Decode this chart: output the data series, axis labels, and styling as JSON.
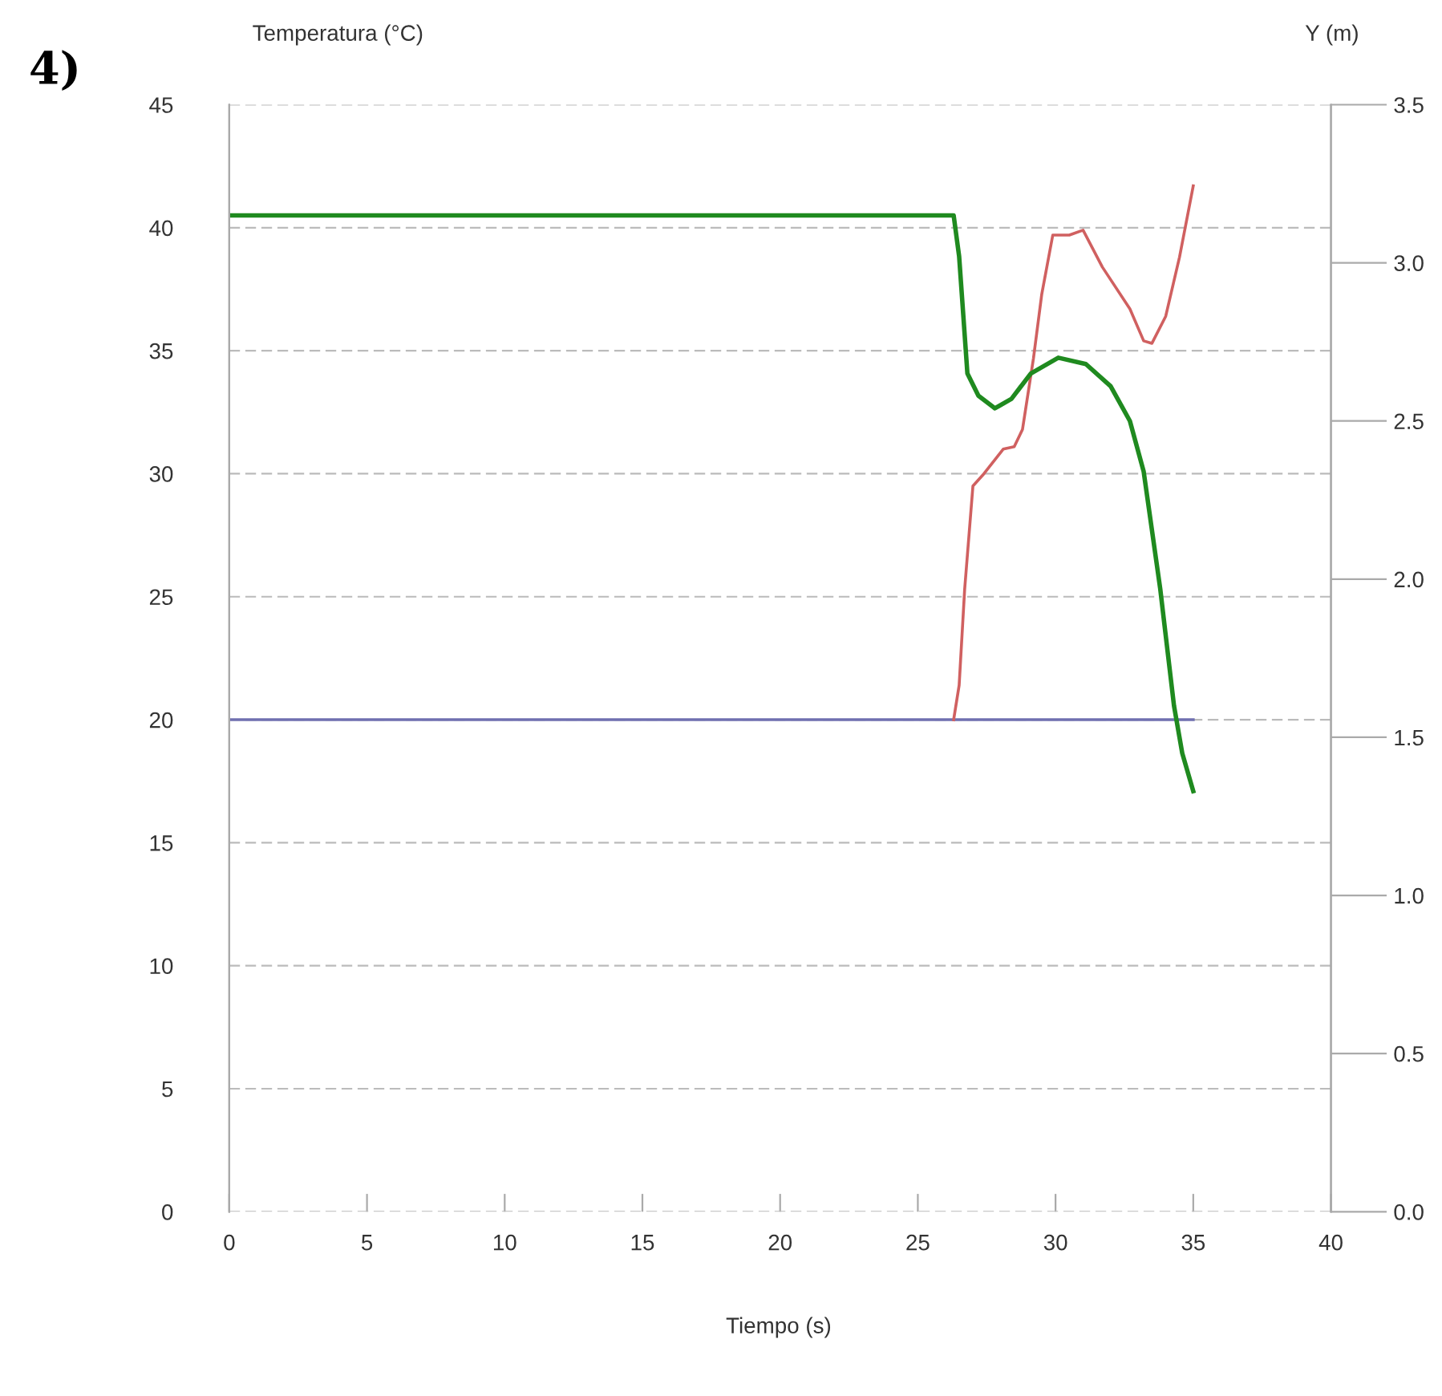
{
  "chart_data": {
    "type": "line",
    "title": "4)",
    "xlabel": "Tiempo (s)",
    "ylabel": "Temperatura (°C)",
    "y2label": "Y (m)",
    "xlim": [
      0,
      40
    ],
    "xticks": [
      0,
      5,
      10,
      15,
      20,
      25,
      30,
      35,
      40
    ],
    "ylim": [
      0,
      45
    ],
    "yticks": [
      0,
      5,
      10,
      15,
      20,
      25,
      30,
      35,
      40,
      45
    ],
    "y2lim": [
      0,
      3.5
    ],
    "y2ticks": [
      {
        "value": 0,
        "label": "0.0"
      },
      {
        "value": 0.5,
        "label": "0.5"
      },
      {
        "value": 1,
        "label": "1.0"
      },
      {
        "value": 1.5,
        "label": "1.5"
      },
      {
        "value": 2,
        "label": "2.0"
      },
      {
        "value": 2.5,
        "label": "2.5"
      },
      {
        "value": 3,
        "label": "3.0"
      },
      {
        "value": 3.5,
        "label": "3.5"
      }
    ],
    "grid": "y",
    "series": [
      {
        "color": "#7070b0",
        "x": [
          0,
          35
        ],
        "values": [
          20,
          20
        ]
      },
      {
        "color": "#d06060",
        "x": [
          26.3,
          26.5,
          26.7,
          27.0,
          27.4,
          28.1,
          28.5,
          28.8,
          29.2,
          29.5,
          29.9,
          30.5,
          31.0,
          31.7,
          32.7,
          33.2,
          33.5,
          34.0,
          34.5,
          35.0
        ],
        "values": [
          20.0,
          21.4,
          25.3,
          29.5,
          30.0,
          31.0,
          31.1,
          31.8,
          34.7,
          37.3,
          39.7,
          39.7,
          39.9,
          38.4,
          36.7,
          35.4,
          35.3,
          36.4,
          38.8,
          41.7
        ]
      },
      {
        "color": "#1f8a1f",
        "axis": "y2",
        "x": [
          0,
          26.3,
          26.5,
          26.8,
          27.2,
          27.8,
          28.4,
          29.1,
          30.1,
          31.1,
          32.0,
          32.7,
          33.2,
          33.8,
          34.3,
          34.6,
          35.0
        ],
        "values": [
          3.15,
          3.15,
          3.02,
          2.65,
          2.58,
          2.54,
          2.57,
          2.65,
          2.7,
          2.68,
          2.61,
          2.5,
          2.34,
          1.97,
          1.6,
          1.45,
          1.33
        ]
      }
    ]
  }
}
